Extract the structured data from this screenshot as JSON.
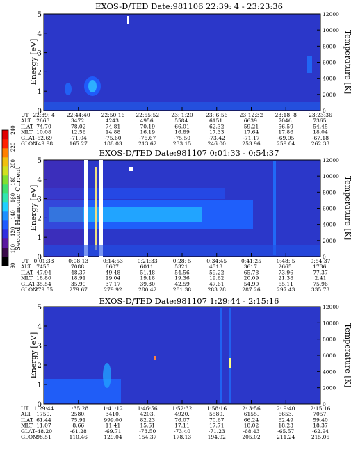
{
  "colorbar": {
    "label": "Second Harmonic Current",
    "ticks": [
      "80",
      "100",
      "120",
      "140",
      "160",
      "180",
      "200",
      "220",
      "240"
    ],
    "colors": [
      "#000000",
      "#3a0a4a",
      "#5a18a0",
      "#2f2fe0",
      "#1f5cff",
      "#1e90ff",
      "#20d0ff",
      "#30e6b0",
      "#40e070",
      "#80e030",
      "#d0e020",
      "#f0c010",
      "#ff8000",
      "#ff2000",
      "#e00000"
    ]
  },
  "row_labels": [
    "UT",
    "ALT",
    "ILAT",
    "MLT",
    "GLAT",
    "GLON"
  ],
  "chart_data": [
    {
      "type": "heatmap",
      "title": "EXOS-D/TED   Date:981106  22:39: 4 - 23:23:36",
      "ylabel": "Energy [eV]",
      "y2label": "Temperature [K]",
      "ylim": [
        0,
        5
      ],
      "y2lim": [
        0,
        12000
      ],
      "yticks": [
        "0",
        "1",
        "2",
        "3",
        "4",
        "5"
      ],
      "y2ticks": [
        "0",
        "2000",
        "4000",
        "6000",
        "8000",
        "10000",
        "12000"
      ],
      "columns": [
        {
          "UT": "22:39: 4",
          "ALT": "2663.",
          "ILAT": "74.70",
          "MLT": "10.08",
          "GLAT": "-62.69",
          "GLON": "149.98"
        },
        {
          "UT": "22:44:40",
          "ALT": "3472.",
          "ILAT": "78.02",
          "MLT": "12.56",
          "GLAT": "-71.04",
          "GLON": "165.27"
        },
        {
          "UT": "22:50:16",
          "ALT": "4243.",
          "ILAT": "74.81",
          "MLT": "14.88",
          "GLAT": "-75.60",
          "GLON": "188.03"
        },
        {
          "UT": "22:55:52",
          "ALT": "4956.",
          "ILAT": "70.19",
          "MLT": "16.19",
          "GLAT": "-76.67",
          "GLON": "213.62"
        },
        {
          "UT": "23: 1:20",
          "ALT": "5584.",
          "ILAT": "66.01",
          "MLT": "16.89",
          "GLAT": "-75.50",
          "GLON": "233.15"
        },
        {
          "UT": "23: 6:56",
          "ALT": "6151.",
          "ILAT": "62.32",
          "MLT": "17.33",
          "GLAT": "-73.42",
          "GLON": "246.00"
        },
        {
          "UT": "23:12:32",
          "ALT": "6639.",
          "ILAT": "59.21",
          "MLT": "17.64",
          "GLAT": "-71.17",
          "GLON": "253.96"
        },
        {
          "UT": "23:18: 8",
          "ALT": "7046.",
          "ILAT": "56.59",
          "MLT": "17.86",
          "GLAT": "-69.05",
          "GLON": "259.04"
        },
        {
          "UT": "23:23:36",
          "ALT": "7365.",
          "ILAT": "54.45",
          "MLT": "18.04",
          "GLAT": "-67.18",
          "GLON": "262.33"
        }
      ]
    },
    {
      "type": "heatmap",
      "title": "EXOS-D/TED   Date:981107  0:01:33 - 0:54:37",
      "ylabel": "Energy [eV]",
      "y2label": "Temperature [K]",
      "ylim": [
        0,
        5
      ],
      "y2lim": [
        0,
        12000
      ],
      "yticks": [
        "0",
        "1",
        "2",
        "3",
        "4",
        "5"
      ],
      "y2ticks": [
        "0",
        "2000",
        "4000",
        "6000",
        "8000",
        "10000",
        "12000"
      ],
      "columns": [
        {
          "UT": "0:01:33",
          "ALT": "7455.",
          "ILAT": "47.94",
          "MLT": "18.80",
          "GLAT": "35.54",
          "GLON": "279.55"
        },
        {
          "UT": "0:08:13",
          "ALT": "7088.",
          "ILAT": "48.37",
          "MLT": "18.91",
          "GLAT": "35.99",
          "GLON": "279.67"
        },
        {
          "UT": "0:14:53",
          "ALT": "6607.",
          "ILAT": "49.48",
          "MLT": "19.04",
          "GLAT": "37.17",
          "GLON": "279.92"
        },
        {
          "UT": "0:21:33",
          "ALT": "6011.",
          "ILAT": "51.48",
          "MLT": "19.18",
          "GLAT": "39.30",
          "GLON": "280.42"
        },
        {
          "UT": "0:28: 5",
          "ALT": "5321.",
          "ILAT": "54.56",
          "MLT": "19.36",
          "GLAT": "42.59",
          "GLON": "281.38"
        },
        {
          "UT": "0:34:45",
          "ALT": "4513.",
          "ILAT": "59.22",
          "MLT": "19.62",
          "GLAT": "47.61",
          "GLON": "283.28"
        },
        {
          "UT": "0:41:25",
          "ALT": "3617.",
          "ILAT": "65.78",
          "MLT": "20.09",
          "GLAT": "54.90",
          "GLON": "287.26"
        },
        {
          "UT": "0:48: 5",
          "ALT": "2665.",
          "ILAT": "73.96",
          "MLT": "21.38",
          "GLAT": "65.11",
          "GLON": "297.43"
        },
        {
          "UT": "0:54:37",
          "ALT": "1736.",
          "ILAT": "77.37",
          "MLT": "2.41",
          "GLAT": "75.96",
          "GLON": "335.73"
        }
      ]
    },
    {
      "type": "heatmap",
      "title": "EXOS-D/TED   Date:981107  1:29:44 - 2:15:16",
      "ylabel": "Energy [eV]",
      "y2label": "Temperature [K]",
      "ylim": [
        0,
        5
      ],
      "y2lim": [
        0,
        12000
      ],
      "yticks": [
        "0",
        "1",
        "2",
        "3",
        "4",
        "5"
      ],
      "y2ticks": [
        "0",
        "2000",
        "4000",
        "6000",
        "8000",
        "10000",
        "12000"
      ],
      "columns": [
        {
          "UT": "1:29:44",
          "ALT": "1759.",
          "ILAT": "61.44",
          "MLT": "11.07",
          "GLAT": "-48.20",
          "GLON": "98.51"
        },
        {
          "UT": "1:35:28",
          "ALT": "2580.",
          "ILAT": "75.91",
          "MLT": "8.66",
          "GLAT": "-61.28",
          "GLON": "110.46"
        },
        {
          "UT": "1:41:12",
          "ALT": "3410.",
          "ILAT": "999.00",
          "MLT": "11.41",
          "GLAT": "-69.71",
          "GLON": "129.04"
        },
        {
          "UT": "1:46:56",
          "ALT": "4203.",
          "ILAT": "82.23",
          "MLT": "15.61",
          "GLAT": "-73.50",
          "GLON": "154.37"
        },
        {
          "UT": "1:52:32",
          "ALT": "4920.",
          "ILAT": "76.07",
          "MLT": "17.11",
          "GLAT": "-73.40",
          "GLON": "178.13"
        },
        {
          "UT": "1:58:16",
          "ALT": "5580.",
          "ILAT": "70.67",
          "MLT": "17.71",
          "GLAT": "-71.23",
          "GLON": "194.92"
        },
        {
          "UT": "2: 3:56",
          "ALT": "6155.",
          "ILAT": "66.24",
          "MLT": "18.02",
          "GLAT": "-68.43",
          "GLON": "205.02"
        },
        {
          "UT": "2: 9:40",
          "ALT": "6653.",
          "ILAT": "62.49",
          "MLT": "18.23",
          "GLAT": "-65.57",
          "GLON": "211.24"
        },
        {
          "UT": "2:15:16",
          "ALT": "7057.",
          "ILAT": "59.40",
          "MLT": "18.37",
          "GLAT": "-62.94",
          "GLON": "215.06"
        }
      ]
    }
  ]
}
